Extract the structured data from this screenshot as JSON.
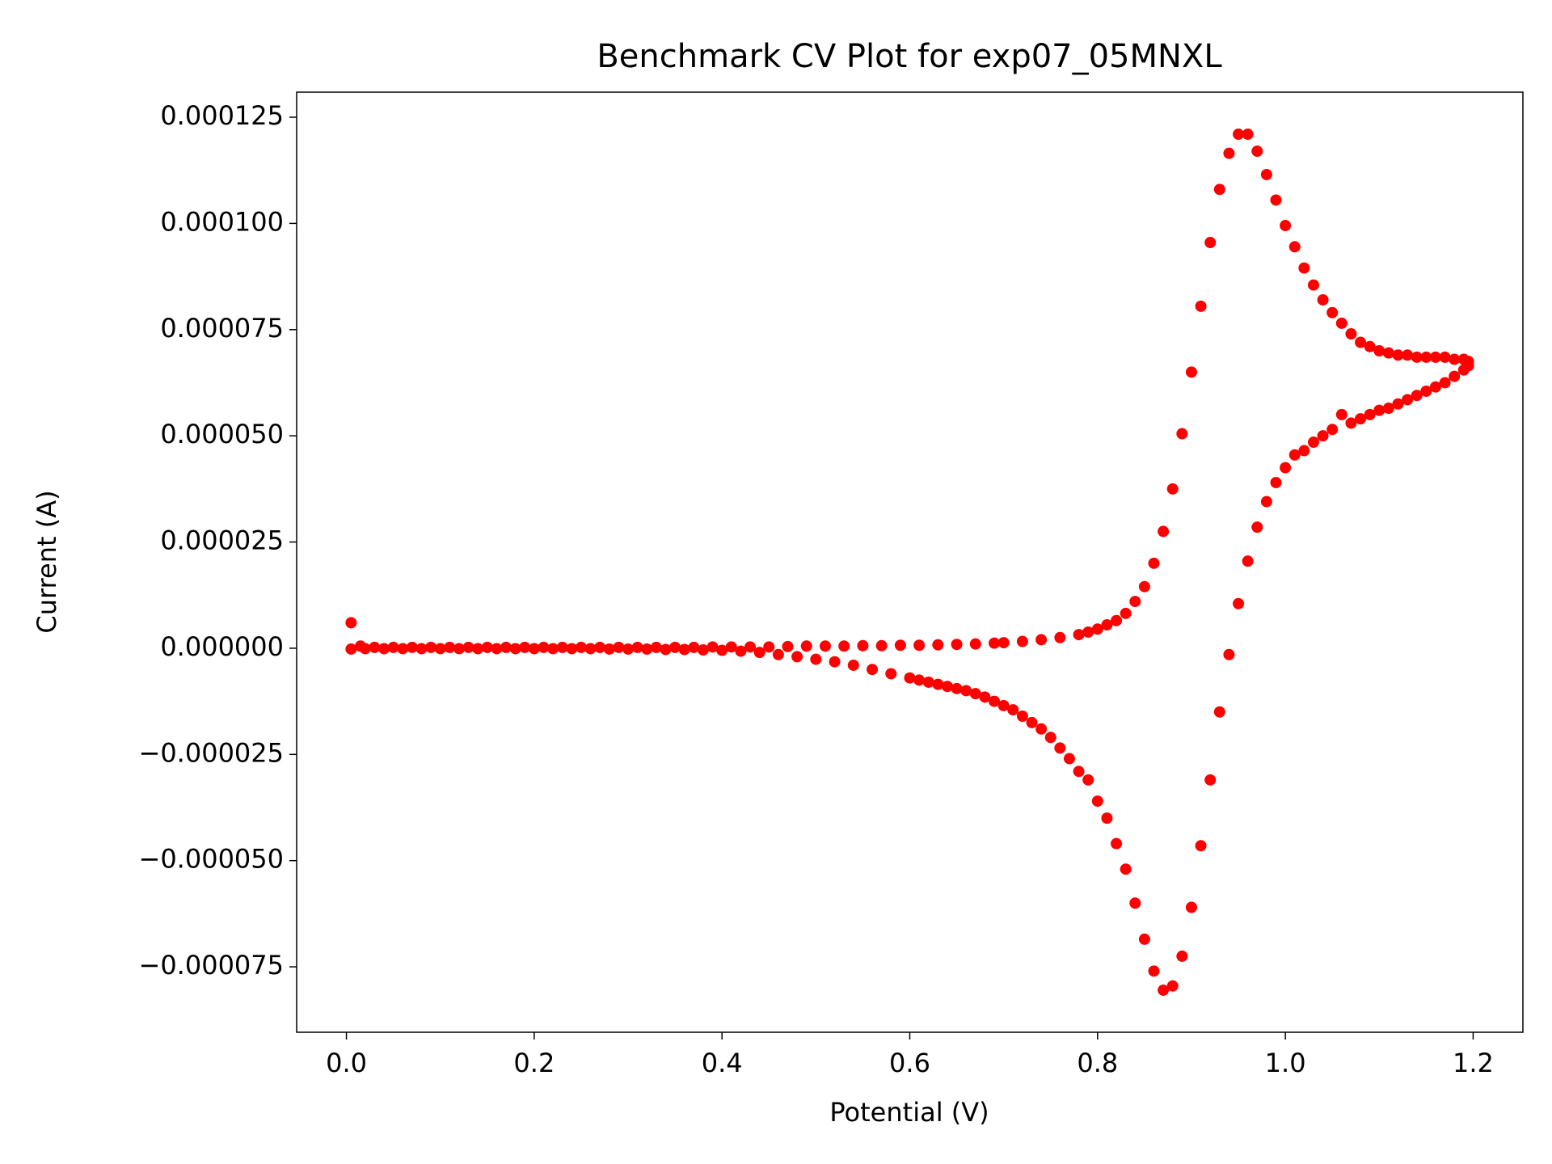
{
  "chart_data": {
    "type": "scatter",
    "title": "Benchmark CV Plot for exp07_05MNXL",
    "x_label": "Potential (V)",
    "y_label": "Current (A)",
    "color": "#ff0000",
    "xlim": [
      -0.053,
      1.253
    ],
    "ylim": [
      -9.04e-05,
      0.0001309
    ],
    "xticks": [
      {
        "value": 0,
        "label": "0.0"
      },
      0.2,
      0.4,
      0.6,
      0.8,
      {
        "value": 1,
        "label": "1.0"
      },
      1.2
    ],
    "yticks": [
      {
        "value": -7.5e-05,
        "label": "−0.000075"
      },
      {
        "value": -5e-05,
        "label": "−0.000050"
      },
      {
        "value": -2.5e-05,
        "label": "−0.000025"
      },
      {
        "value": 0,
        "label": "0.000000"
      },
      2.5e-05,
      {
        "value": 5e-05,
        "label": "0.000050"
      },
      7.5e-05,
      {
        "value": 0.0001,
        "label": "0.000100"
      },
      0.000125
    ],
    "grid": false,
    "x": [
      0.005,
      0.015,
      0.03,
      0.05,
      0.07,
      0.09,
      0.11,
      0.13,
      0.15,
      0.17,
      0.19,
      0.21,
      0.23,
      0.25,
      0.27,
      0.29,
      0.31,
      0.33,
      0.35,
      0.37,
      0.39,
      0.41,
      0.43,
      0.45,
      0.47,
      0.49,
      0.51,
      0.53,
      0.55,
      0.57,
      0.59,
      0.61,
      0.63,
      0.65,
      0.67,
      0.69,
      0.7,
      0.72,
      0.74,
      0.76,
      0.78,
      0.79,
      0.8,
      0.81,
      0.82,
      0.83,
      0.84,
      0.85,
      0.86,
      0.87,
      0.88,
      0.89,
      0.9,
      0.91,
      0.92,
      0.93,
      0.94,
      0.95,
      0.96,
      0.97,
      0.98,
      0.99,
      1.0,
      1.01,
      1.02,
      1.03,
      1.04,
      1.05,
      1.06,
      1.07,
      1.08,
      1.09,
      1.1,
      1.11,
      1.12,
      1.13,
      1.14,
      1.15,
      1.16,
      1.17,
      1.18,
      1.19,
      1.195,
      1.195,
      1.19,
      1.18,
      1.17,
      1.16,
      1.15,
      1.14,
      1.13,
      1.12,
      1.11,
      1.1,
      1.09,
      1.08,
      1.07,
      1.06,
      1.05,
      1.04,
      1.03,
      1.02,
      1.01,
      1.0,
      0.99,
      0.98,
      0.97,
      0.96,
      0.95,
      0.94,
      0.93,
      0.92,
      0.91,
      0.9,
      0.89,
      0.88,
      0.87,
      0.86,
      0.85,
      0.84,
      0.83,
      0.82,
      0.81,
      0.8,
      0.79,
      0.78,
      0.77,
      0.76,
      0.75,
      0.74,
      0.73,
      0.72,
      0.71,
      0.7,
      0.69,
      0.68,
      0.67,
      0.66,
      0.65,
      0.64,
      0.63,
      0.62,
      0.61,
      0.6,
      0.58,
      0.56,
      0.54,
      0.52,
      0.5,
      0.48,
      0.46,
      0.44,
      0.42,
      0.4,
      0.38,
      0.36,
      0.34,
      0.32,
      0.3,
      0.28,
      0.26,
      0.24,
      0.22,
      0.2,
      0.18,
      0.16,
      0.14,
      0.12,
      0.1,
      0.08,
      0.06,
      0.04,
      0.02,
      0.005
    ],
    "values": [
      6e-06,
      5e-07,
      2e-07,
      2e-07,
      2e-07,
      2e-07,
      2e-07,
      2e-07,
      2e-07,
      2e-07,
      2e-07,
      2e-07,
      2e-07,
      2e-07,
      2e-07,
      2e-07,
      2e-07,
      2e-07,
      2e-07,
      2e-07,
      3e-07,
      3e-07,
      3e-07,
      3e-07,
      4e-07,
      5e-07,
      5e-07,
      5e-07,
      6e-07,
      6e-07,
      7e-07,
      7e-07,
      8e-07,
      9e-07,
      1e-06,
      1.2e-06,
      1.3e-06,
      1.6e-06,
      2e-06,
      2.5e-06,
      3.2e-06,
      3.8e-06,
      4.5e-06,
      5.5e-06,
      6.5e-06,
      8.2e-06,
      1.1e-05,
      1.45e-05,
      2e-05,
      2.75e-05,
      3.75e-05,
      5.05e-05,
      6.5e-05,
      8.05e-05,
      9.55e-05,
      0.000108,
      0.0001165,
      0.000121,
      0.000121,
      0.000117,
      0.0001115,
      0.0001055,
      9.95e-05,
      9.45e-05,
      8.95e-05,
      8.55e-05,
      8.2e-05,
      7.9e-05,
      7.65e-05,
      7.4e-05,
      7.2e-05,
      7.1e-05,
      7e-05,
      6.95e-05,
      6.9e-05,
      6.9e-05,
      6.85e-05,
      6.85e-05,
      6.85e-05,
      6.85e-05,
      6.8e-05,
      6.8e-05,
      6.75e-05,
      6.65e-05,
      6.55e-05,
      6.4e-05,
      6.25e-05,
      6.15e-05,
      6.05e-05,
      5.95e-05,
      5.85e-05,
      5.75e-05,
      5.65e-05,
      5.6e-05,
      5.5e-05,
      5.4e-05,
      5.3e-05,
      5.5e-05,
      5.15e-05,
      5e-05,
      4.85e-05,
      4.65e-05,
      4.55e-05,
      4.25e-05,
      3.9e-05,
      3.45e-05,
      2.85e-05,
      2.05e-05,
      1.05e-05,
      -1.5e-06,
      -1.5e-05,
      -3.1e-05,
      -4.65e-05,
      -6.1e-05,
      -7.25e-05,
      -7.95e-05,
      -8.05e-05,
      -7.6e-05,
      -6.85e-05,
      -6e-05,
      -5.2e-05,
      -4.6e-05,
      -4e-05,
      -3.6e-05,
      -3.1e-05,
      -2.9e-05,
      -2.6e-05,
      -2.35e-05,
      -2.1e-05,
      -1.9e-05,
      -1.75e-05,
      -1.6e-05,
      -1.45e-05,
      -1.35e-05,
      -1.25e-05,
      -1.15e-05,
      -1.07e-05,
      -1e-05,
      -9.5e-06,
      -9e-06,
      -8.5e-06,
      -8e-06,
      -7.5e-06,
      -7e-06,
      -6e-06,
      -5e-06,
      -4e-06,
      -3.2e-06,
      -2.6e-06,
      -2e-06,
      -1.5e-06,
      -1e-06,
      -7e-07,
      -5e-07,
      -4e-07,
      -3e-07,
      -3e-07,
      -2e-07,
      -2e-07,
      -2e-07,
      -1e-07,
      -1e-07,
      -1e-07,
      -1e-07,
      -1e-07,
      -1e-07,
      -1e-07,
      -1e-07,
      -1e-07,
      -1e-07,
      -1e-07,
      -1e-07,
      -1e-07,
      -2e-07
    ]
  }
}
